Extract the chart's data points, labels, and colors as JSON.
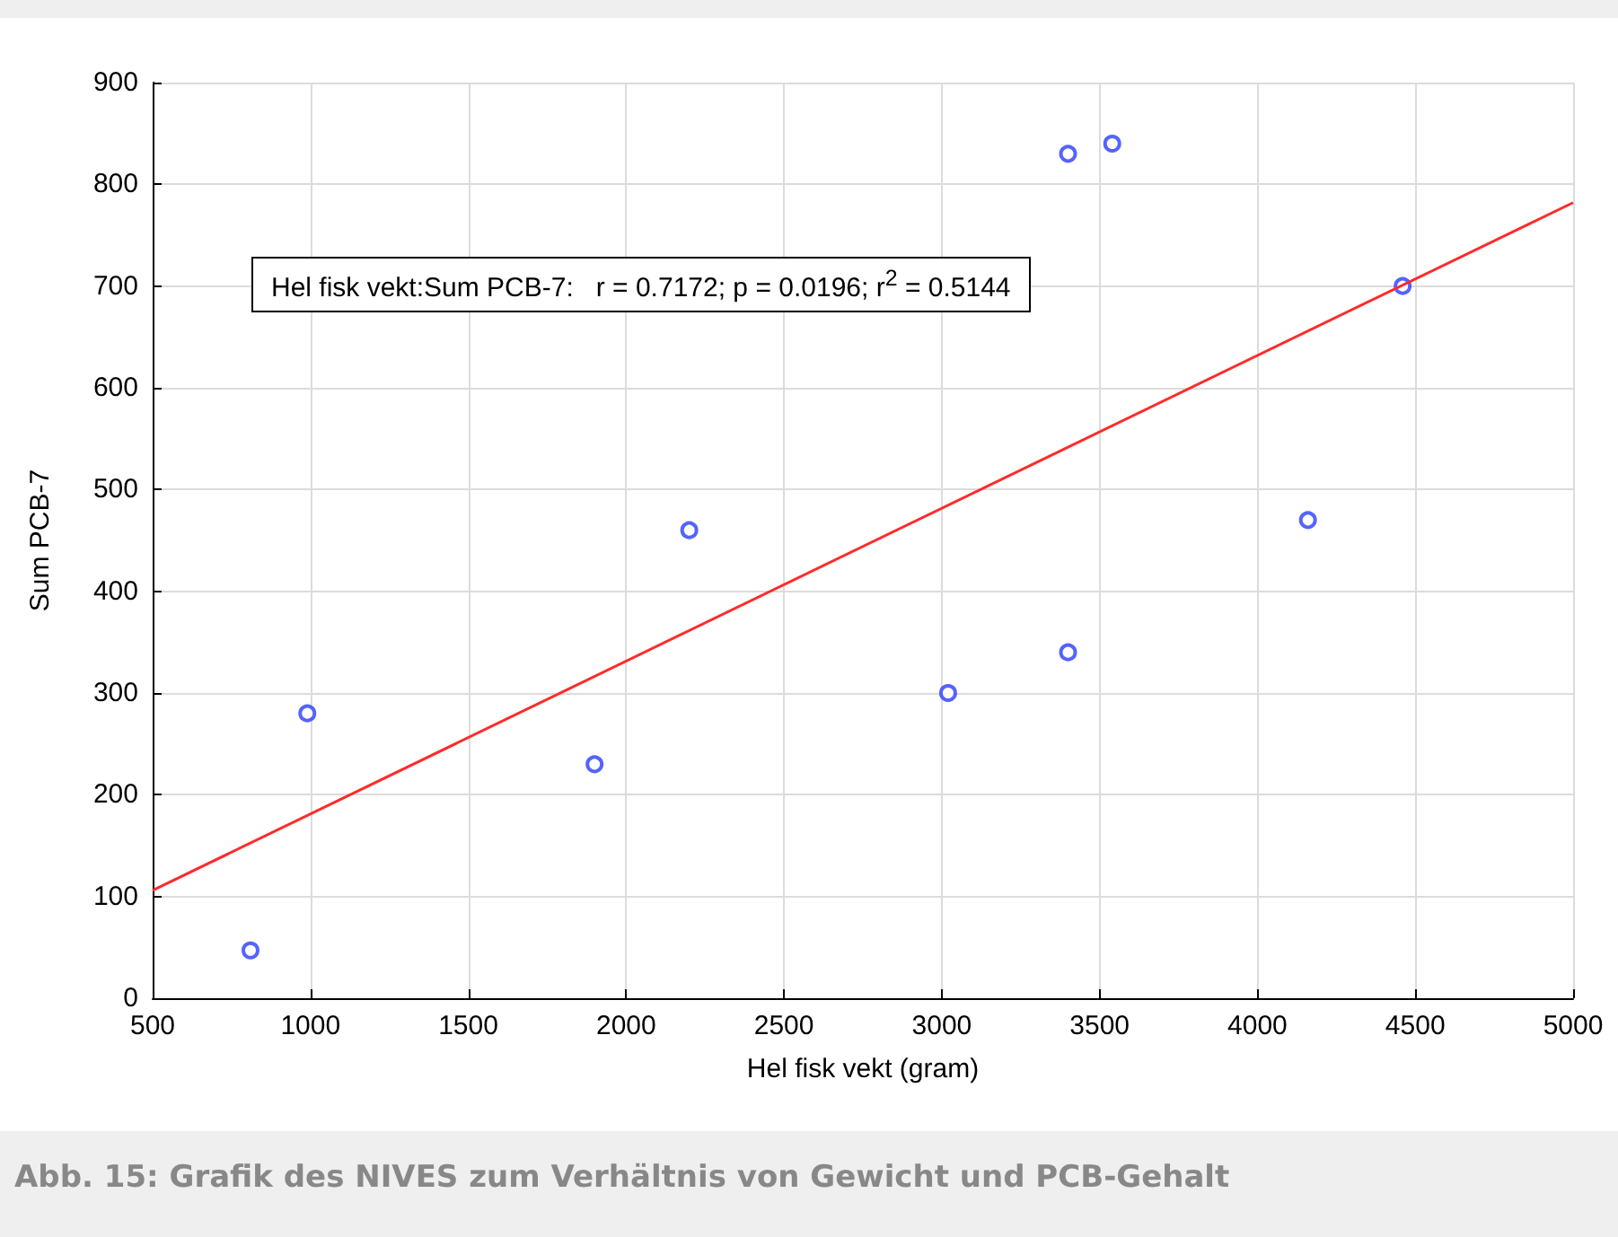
{
  "chart_data": {
    "type": "scatter",
    "xlabel": "Hel fisk vekt (gram)",
    "ylabel": "Sum PCB-7",
    "annotations": [
      "Hel fisk vekt:Sum PCB-7:   r = 0.7172; p = 0.0196; r$^{2}$ = 0.5144",
      "Abb. 15: Grafik des NIVES zum Verhältnis von Gewicht und PCB-Gehalt"
    ],
    "series": [
      {
        "color": "#2a3cff",
        "marker": "circle",
        "x": [
          810,
          990,
          1900,
          2200,
          3020,
          3400,
          3400,
          3540,
          4160,
          4460
        ],
        "values": [
          47,
          280,
          230,
          460,
          300,
          830,
          340,
          840,
          470,
          700
        ]
      },
      {
        "type": "line",
        "color": "#ff2a2a",
        "x": [
          500,
          5000
        ],
        "values": [
          106,
          782
        ]
      }
    ],
    "xlim": [
      500,
      5000
    ],
    "xticks": [
      500,
      1000,
      1500,
      2000,
      2500,
      3000,
      3500,
      4000,
      4500,
      5000
    ],
    "ylim": [
      0,
      900
    ],
    "yticks": [
      0,
      100,
      200,
      300,
      400,
      500,
      600,
      700,
      800,
      900
    ],
    "grid": true
  }
}
